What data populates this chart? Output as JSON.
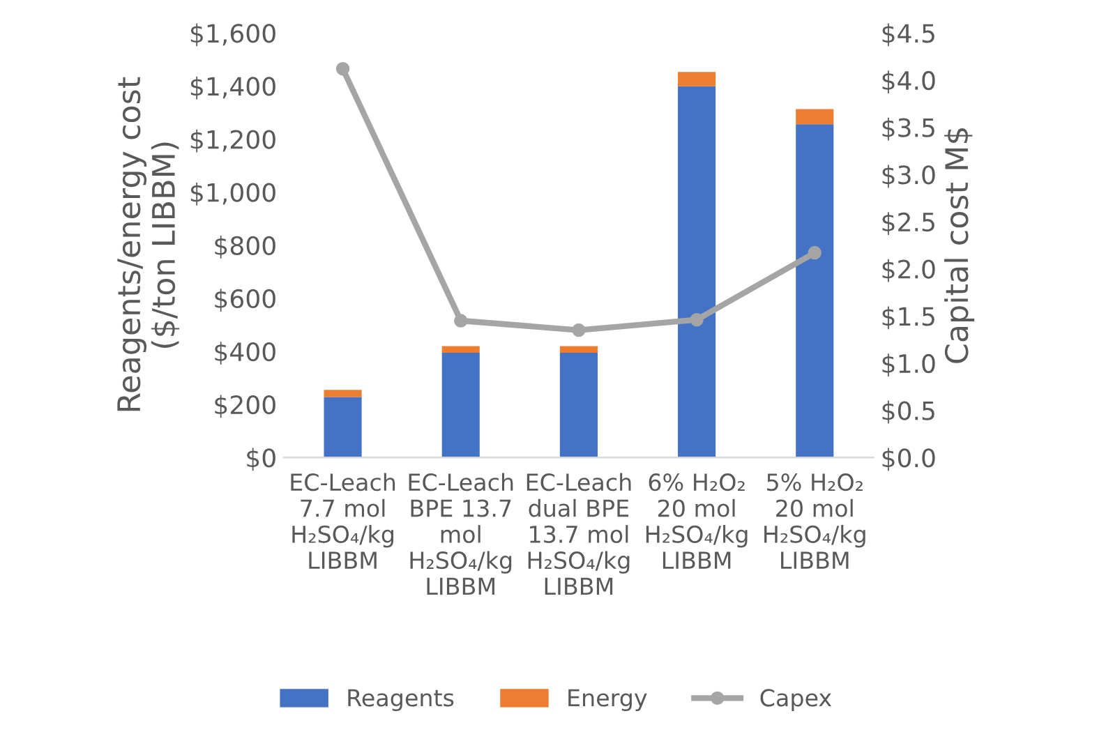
{
  "chart_data": {
    "type": "bar",
    "stacked": true,
    "ylabel": "Reagents/energy cost\n($/ton LIBBM)",
    "y2label": "Capital cost M$",
    "categories": [
      "EC-Leach\n7.7 mol\nH₂SO₄/kg\nLIBBM",
      "EC-Leach\nBPE 13.7\nmol\nH₂SO₄/kg\nLIBBM",
      "EC-Leach\ndual BPE\n13.7 mol\nH₂SO₄/kg\nLIBBM",
      "6% H₂O₂\n20 mol\nH₂SO₄/kg\nLIBBM",
      "5% H₂O₂\n20 mol\nH₂SO₄/kg\nLIBBM"
    ],
    "series": [
      {
        "name": "Reagents",
        "color": "#4472c4",
        "values": [
          228,
          395,
          395,
          1399,
          1256
        ]
      },
      {
        "name": "Energy",
        "color": "#ed7d31",
        "values": [
          27,
          25,
          25,
          54,
          57
        ]
      },
      {
        "name": "Capex",
        "color": "#a5a5a5",
        "type": "line",
        "axis": "y2",
        "marker": "circle",
        "values": [
          4.12,
          1.45,
          1.35,
          1.46,
          2.17
        ]
      }
    ],
    "ylim": [
      0,
      1600
    ],
    "yticks": [
      {
        "value": 0,
        "label": "$0"
      },
      {
        "value": 200,
        "label": "$200"
      },
      {
        "value": 400,
        "label": "$400"
      },
      {
        "value": 600,
        "label": "$600"
      },
      {
        "value": 800,
        "label": "$800"
      },
      {
        "value": 1000,
        "label": "$1,000"
      },
      {
        "value": 1200,
        "label": "$1,200"
      },
      {
        "value": 1400,
        "label": "$1,400"
      },
      {
        "value": 1600,
        "label": "$1,600"
      }
    ],
    "y2lim": [
      0,
      4.5
    ],
    "y2ticks": [
      {
        "value": 0,
        "label": "$0.0"
      },
      {
        "value": 0.5,
        "label": "$0.5"
      },
      {
        "value": 1,
        "label": "$1.0"
      },
      {
        "value": 1.5,
        "label": "$1.5"
      },
      {
        "value": 2,
        "label": "$2.0"
      },
      {
        "value": 2.5,
        "label": "$2.5"
      },
      {
        "value": 3,
        "label": "$3.0"
      },
      {
        "value": 3.5,
        "label": "$3.5"
      },
      {
        "value": 4,
        "label": "$4.0"
      },
      {
        "value": 4.5,
        "label": "$4.5"
      }
    ],
    "grid": false,
    "legend": "bottom"
  }
}
